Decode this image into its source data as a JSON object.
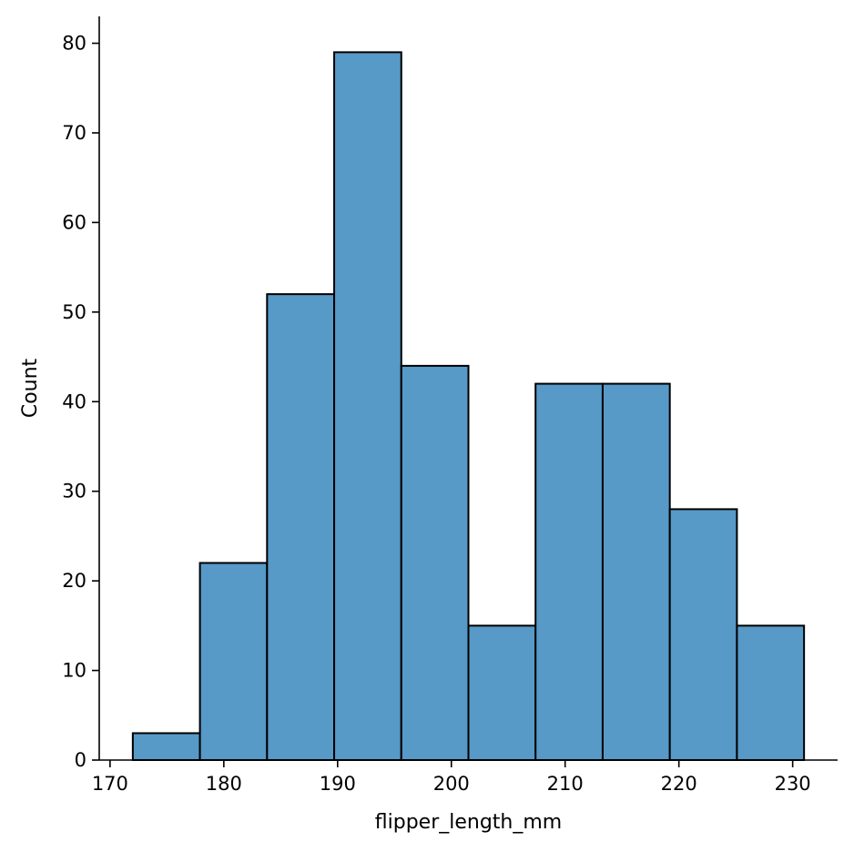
{
  "chart_data": {
    "type": "bar",
    "title": "",
    "xlabel": "flipper_length_mm",
    "ylabel": "Count",
    "xlim": [
      169.05,
      233.95
    ],
    "ylim": [
      0,
      83
    ],
    "xticks": [
      170,
      180,
      190,
      200,
      210,
      220,
      230
    ],
    "yticks": [
      0,
      10,
      20,
      30,
      40,
      50,
      60,
      70,
      80
    ],
    "bins": [
      {
        "start": 172.0,
        "end": 177.9,
        "count": 3
      },
      {
        "start": 177.9,
        "end": 183.8,
        "count": 22
      },
      {
        "start": 183.8,
        "end": 189.7,
        "count": 52
      },
      {
        "start": 189.7,
        "end": 195.6,
        "count": 79
      },
      {
        "start": 195.6,
        "end": 201.5,
        "count": 44
      },
      {
        "start": 201.5,
        "end": 207.4,
        "count": 15
      },
      {
        "start": 207.4,
        "end": 213.3,
        "count": 42
      },
      {
        "start": 213.3,
        "end": 219.2,
        "count": 42
      },
      {
        "start": 219.2,
        "end": 225.1,
        "count": 28
      },
      {
        "start": 225.1,
        "end": 231.0,
        "count": 15
      }
    ],
    "grid": false,
    "bar_color": "#5799c7",
    "edge_color": "#000000"
  }
}
